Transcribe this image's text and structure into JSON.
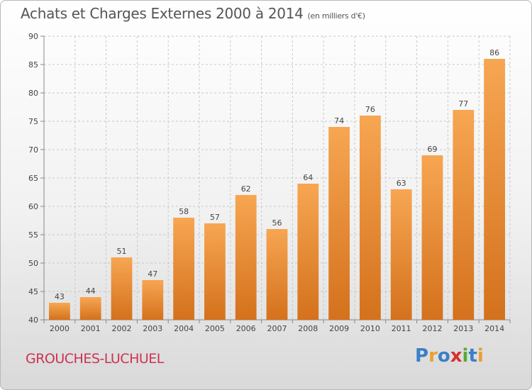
{
  "title": "Achats et Charges Externes 2000 à 2014",
  "subtitle": "(en milliers d'€)",
  "commune": "GROUCHES-LUCHUEL",
  "logo": {
    "text": "Proxiti",
    "letters": [
      {
        "char": "P",
        "color": "#3a7fc8"
      },
      {
        "char": "r",
        "color": "#e8a030"
      },
      {
        "char": "o",
        "color": "#3a7fc8"
      },
      {
        "char": "x",
        "color": "#d63030"
      },
      {
        "char": "i",
        "color": "#5aa83a"
      },
      {
        "char": "t",
        "color": "#3a7fc8"
      },
      {
        "char": "i",
        "color": "#e8a030"
      }
    ]
  },
  "chart_data": {
    "type": "bar",
    "title": "Achats et Charges Externes 2000 à 2014",
    "subtitle": "(en milliers d'€)",
    "categories": [
      "2000",
      "2001",
      "2002",
      "2003",
      "2004",
      "2005",
      "2006",
      "2007",
      "2008",
      "2009",
      "2010",
      "2011",
      "2012",
      "2013",
      "2014"
    ],
    "values": [
      43,
      44,
      51,
      47,
      58,
      57,
      62,
      56,
      64,
      74,
      76,
      63,
      69,
      77,
      86
    ],
    "ylim": [
      40,
      90
    ],
    "yticks": [
      40,
      45,
      50,
      55,
      60,
      65,
      70,
      75,
      80,
      85,
      90
    ],
    "grid": true,
    "legend": "none",
    "bar_color_top": "#f7a652",
    "bar_color_bottom": "#d4711c"
  }
}
